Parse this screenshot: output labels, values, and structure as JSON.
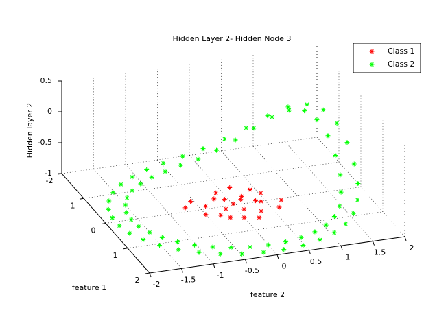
{
  "chart_data": {
    "type": "scatter3d",
    "title": "Hidden Layer 2- Hidden Node 3",
    "xlabel": "feature 1",
    "ylabel": "feature 2",
    "zlabel": "Hidden layer 2",
    "xlim": [
      -2,
      2
    ],
    "ylim": [
      -2,
      2
    ],
    "zlim": [
      -1,
      0.5
    ],
    "xticks": [
      -2,
      -1,
      0,
      1,
      2
    ],
    "yticks": [
      -2,
      -1.5,
      -1,
      -0.5,
      0,
      0.5,
      1,
      1.5,
      2
    ],
    "zticks": [
      -1,
      -0.5,
      0,
      0.5
    ],
    "grid": true,
    "legend": "top-right",
    "series": [
      {
        "name": "Class 1",
        "color": "#ff0000",
        "x": [
          0,
          0.2,
          -0.2,
          0.3,
          -0.3,
          0.1,
          -0.1,
          0.4,
          -0.4,
          0.5,
          -0.5,
          0.2,
          -0.2,
          0.35,
          -0.35,
          0.6,
          -0.6,
          0.1,
          -0.1,
          0.45,
          -0.25,
          0.15,
          -0.15,
          0
        ],
        "y": [
          0,
          0.1,
          0.2,
          -0.3,
          -0.2,
          0.4,
          -0.4,
          0.3,
          0.4,
          0,
          -0.1,
          -0.5,
          0.5,
          0.6,
          -0.55,
          0.2,
          0.15,
          -0.15,
          0.15,
          -0.2,
          -0.05,
          0.7,
          -0.7,
          0.35
        ],
        "z": [
          -0.98,
          -1,
          -0.97,
          -1,
          -0.99,
          -0.96,
          -1,
          -0.98,
          -0.97,
          -1,
          -0.99,
          -1,
          -0.96,
          -0.98,
          -1,
          -0.99,
          -0.98,
          -1,
          -0.97,
          -0.99,
          -1,
          -0.96,
          -1,
          -0.98
        ]
      },
      {
        "name": "Class 2",
        "color": "#00ff00",
        "x": [
          1.6,
          1.58,
          1.5,
          1.39,
          1.23,
          1.03,
          0.8,
          0.55,
          0.28,
          0,
          -0.28,
          -0.55,
          -0.8,
          -1.03,
          -1.23,
          -1.39,
          -1.5,
          -1.58,
          -1.6,
          -1.58,
          -1.5,
          -1.39,
          -1.23,
          -1.03,
          -0.8,
          -0.55,
          -0.28,
          0,
          0.28,
          0.55,
          0.8,
          1.03,
          1.23,
          1.39,
          1.5,
          1.58,
          1.84,
          1.79,
          1.68,
          1.52,
          1.31,
          1.06,
          0.78,
          0.48,
          0.16,
          -0.16,
          -0.48,
          -0.78,
          -1.06,
          -1.31,
          -1.52,
          -1.68,
          -1.79,
          -1.84,
          -1.84,
          -1.79,
          -1.68,
          -1.52,
          -1.31,
          -1.06,
          -0.78,
          -0.48,
          -0.16,
          0.16,
          0.48,
          0.78,
          1.06,
          1.31,
          1.52,
          1.68,
          1.79,
          1.84
        ],
        "y": [
          0,
          0.28,
          0.55,
          0.8,
          1.03,
          1.23,
          1.39,
          1.5,
          1.58,
          1.6,
          1.58,
          1.5,
          1.39,
          1.23,
          1.03,
          0.8,
          0.55,
          0.28,
          0,
          -0.28,
          -0.55,
          -0.8,
          -1.03,
          -1.23,
          -1.39,
          -1.5,
          -1.58,
          -1.6,
          -1.58,
          -1.5,
          -1.39,
          -1.23,
          -1.03,
          -0.8,
          -0.55,
          -0.28,
          0.16,
          0.48,
          0.78,
          1.06,
          1.31,
          1.52,
          1.68,
          1.79,
          1.84,
          1.84,
          1.79,
          1.68,
          1.52,
          1.31,
          1.06,
          0.78,
          0.48,
          0.16,
          -0.16,
          -0.48,
          -0.78,
          -1.06,
          -1.31,
          -1.52,
          -1.68,
          -1.79,
          -1.84,
          -1.84,
          -1.79,
          -1.68,
          -1.52,
          -1.31,
          -1.06,
          -0.78,
          -0.48,
          -0.16
        ],
        "z": [
          -1,
          -1,
          -1,
          -0.99,
          -0.98,
          -0.95,
          -0.9,
          -0.79,
          -0.63,
          -0.43,
          -0.22,
          -0.06,
          0,
          -0.06,
          -0.22,
          -0.43,
          -0.63,
          -0.79,
          -0.9,
          -0.95,
          -0.98,
          -0.99,
          -1,
          -1,
          -1,
          -1,
          -1,
          -1,
          -1,
          -1,
          -1,
          -1,
          -1,
          -1,
          -1,
          -1,
          -1,
          -1,
          -1,
          -0.99,
          -0.97,
          -0.93,
          -0.85,
          -0.72,
          -0.54,
          -0.32,
          -0.13,
          -0.02,
          -0.02,
          -0.13,
          -0.32,
          -0.54,
          -0.72,
          -0.85,
          -0.93,
          -0.97,
          -0.99,
          -1,
          -1,
          -1,
          -1,
          -1,
          -1,
          -1,
          -1,
          -1,
          -1,
          -1,
          -1,
          -1,
          -1,
          -1
        ]
      }
    ]
  }
}
